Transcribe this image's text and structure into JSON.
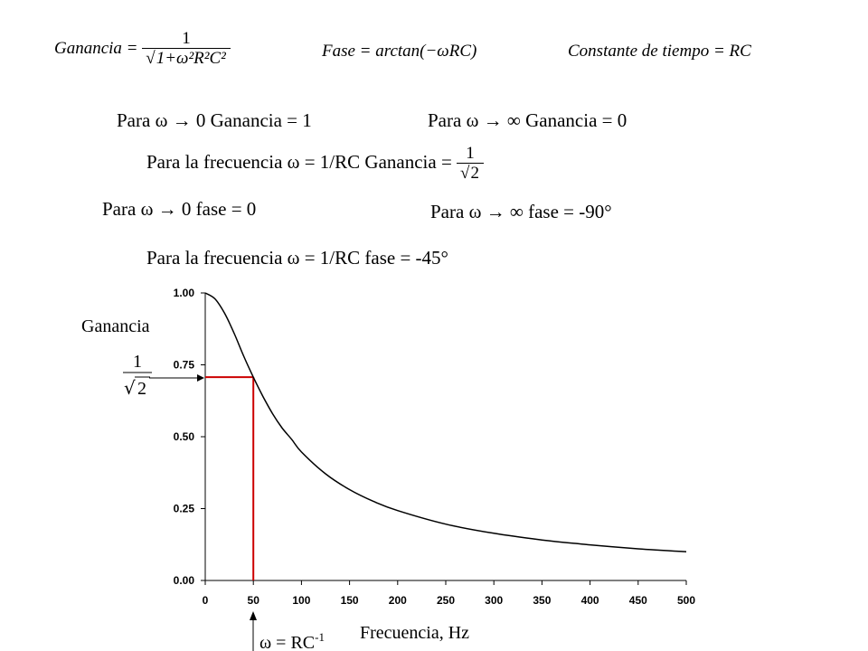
{
  "formulas": {
    "gain_lhs": "Ganancia =",
    "gain_num": "1",
    "gain_den_one": "1+",
    "gain_den_terms": "ω²R²C²",
    "phase_lhs": "Fase = arctan",
    "phase_arg": "(−ωRC)",
    "time_constant": "Constante  de tiempo = RC"
  },
  "statements": {
    "gain_low": "Para ω → 0 Ganancia = 1",
    "gain_high": "Para ω → ∞ Ganancia = 0",
    "gain_cutoff": "Para la frecuencia ω = 1/RC   Ganancia =",
    "gain_cutoff_num": "1",
    "gain_cutoff_den": "2",
    "phase_low": "Para ω → 0 fase = 0",
    "phase_high": "Para ω → ∞ fase = -90°",
    "phase_cutoff": "Para la frecuencia ω = 1/RC   fase = -45°"
  },
  "annotations": {
    "ylabel": "Ganancia",
    "y_marker_num": "1",
    "y_marker_den": "2",
    "xlabel": "Frecuencia, Hz",
    "x_marker_main": "ω = RC",
    "x_marker_sup": "-1"
  },
  "colors": {
    "curve": "#000000",
    "marker_lines": "#cc0000",
    "axes": "#000000"
  },
  "chart_data": {
    "type": "line",
    "xlabel": "Frecuencia, Hz",
    "ylabel": "Ganancia",
    "xlim": [
      0,
      500
    ],
    "ylim": [
      0,
      1
    ],
    "x_ticks": [
      "0",
      "50",
      "100",
      "150",
      "200",
      "250",
      "300",
      "350",
      "400",
      "450",
      "500"
    ],
    "y_ticks": [
      "0.00",
      "0.25",
      "0.50",
      "0.75",
      "1.00"
    ],
    "grid": false,
    "series": [
      {
        "x": [
          0,
          10,
          20,
          30,
          40,
          50,
          60,
          70,
          80,
          90,
          100,
          125,
          150,
          175,
          200,
          250,
          300,
          350,
          400,
          450,
          500
        ],
        "y": [
          1.0,
          0.98,
          0.93,
          0.86,
          0.78,
          0.707,
          0.64,
          0.58,
          0.53,
          0.49,
          0.447,
          0.371,
          0.316,
          0.275,
          0.243,
          0.196,
          0.164,
          0.141,
          0.124,
          0.11,
          0.1
        ]
      }
    ],
    "markers": {
      "cutoff_x": 50,
      "cutoff_y": 0.707
    }
  }
}
